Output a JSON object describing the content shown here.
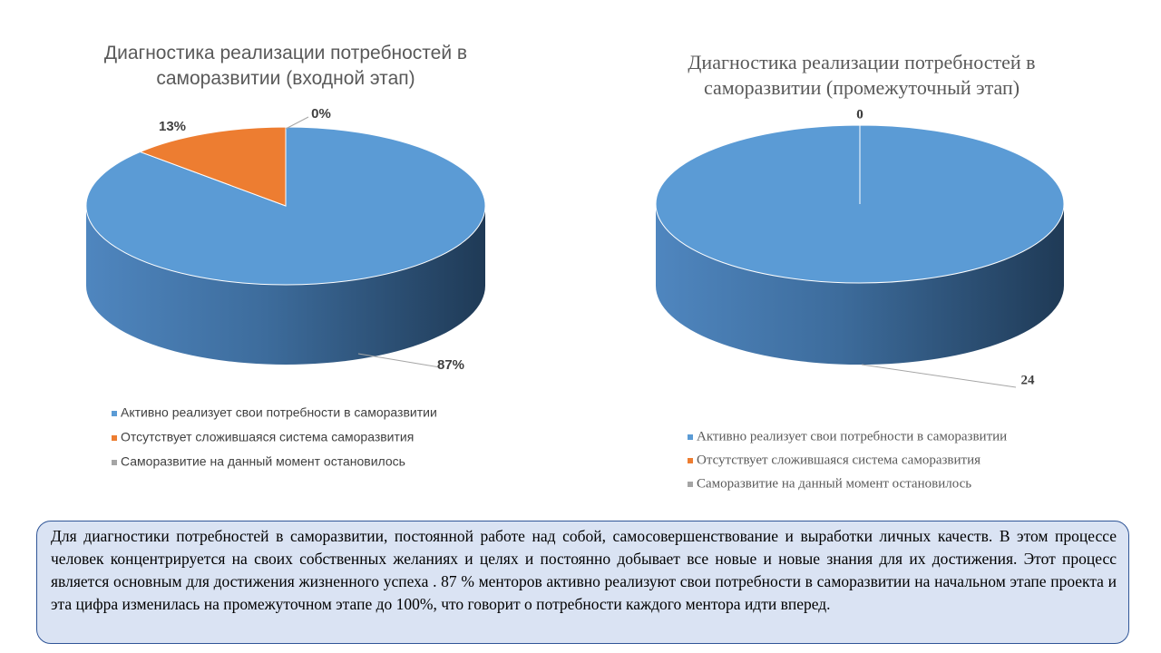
{
  "chart_data": [
    {
      "type": "pie",
      "title": "Диагностика реализации потребностей в саморазвитии  (входной этап)",
      "categories": [
        "Активно реализует свои потребности в саморазвитии",
        "Отсутствует сложившаяся система саморазвития",
        "Саморазвитие на данный момент остановилось"
      ],
      "values": [
        87,
        13,
        0
      ],
      "value_labels": [
        "87%",
        "13%",
        "0%"
      ],
      "colors": [
        "#5b9bd5",
        "#ed7d31",
        "#a5a5a5"
      ]
    },
    {
      "type": "pie",
      "title": "Диагностика реализации потребностей в саморазвитии (промежуточный этап)",
      "categories": [
        "Активно реализует свои потребности в саморазвитии",
        "Отсутствует сложившаяся система саморазвития",
        "Саморазвитие на данный момент остановилось"
      ],
      "values": [
        24,
        0,
        0
      ],
      "colors": [
        "#5b9bd5",
        "#ed7d31",
        "#a5a5a5"
      ]
    }
  ],
  "note": {
    "text": "Для диагностики потребностей в саморазвитии, постоянной работе над собой, самосовершенствование и выработки личных качеств. В этом процессе человек концентрируется на своих собственных желаниях и целях и постоянно добывает все новые и новые знания для их достижения. Этот процесс является основным для достижения жизненного успеха . 87 % менторов активно реализуют свои потребности в саморазвитии на начальном этапе проекта и эта цифра изменилась на промежуточном этапе до 100%, что говорит о потребности каждого ментора идти вперед."
  }
}
